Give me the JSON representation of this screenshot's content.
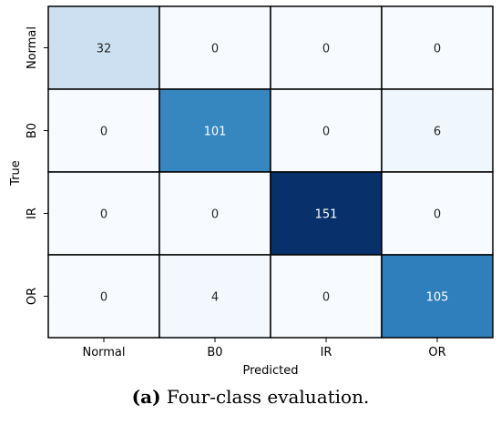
{
  "chart_data": {
    "type": "heatmap",
    "x_categories": [
      "Normal",
      "B0",
      "IR",
      "OR"
    ],
    "y_categories": [
      "Normal",
      "B0",
      "IR",
      "OR"
    ],
    "values": [
      [
        32,
        0,
        0,
        0
      ],
      [
        0,
        101,
        0,
        6
      ],
      [
        0,
        0,
        151,
        0
      ],
      [
        0,
        4,
        0,
        105
      ]
    ],
    "xlabel": "Predicted",
    "ylabel": "True",
    "colormap": "Blues",
    "vmin": 0,
    "vmax": 151,
    "grid": true,
    "legend": "none"
  },
  "caption": {
    "label": "(a)",
    "text": "Four-class evaluation."
  },
  "colors": {
    "light_text": "#ffffff",
    "dark_text": "#262626",
    "cell_border": "#000000"
  }
}
